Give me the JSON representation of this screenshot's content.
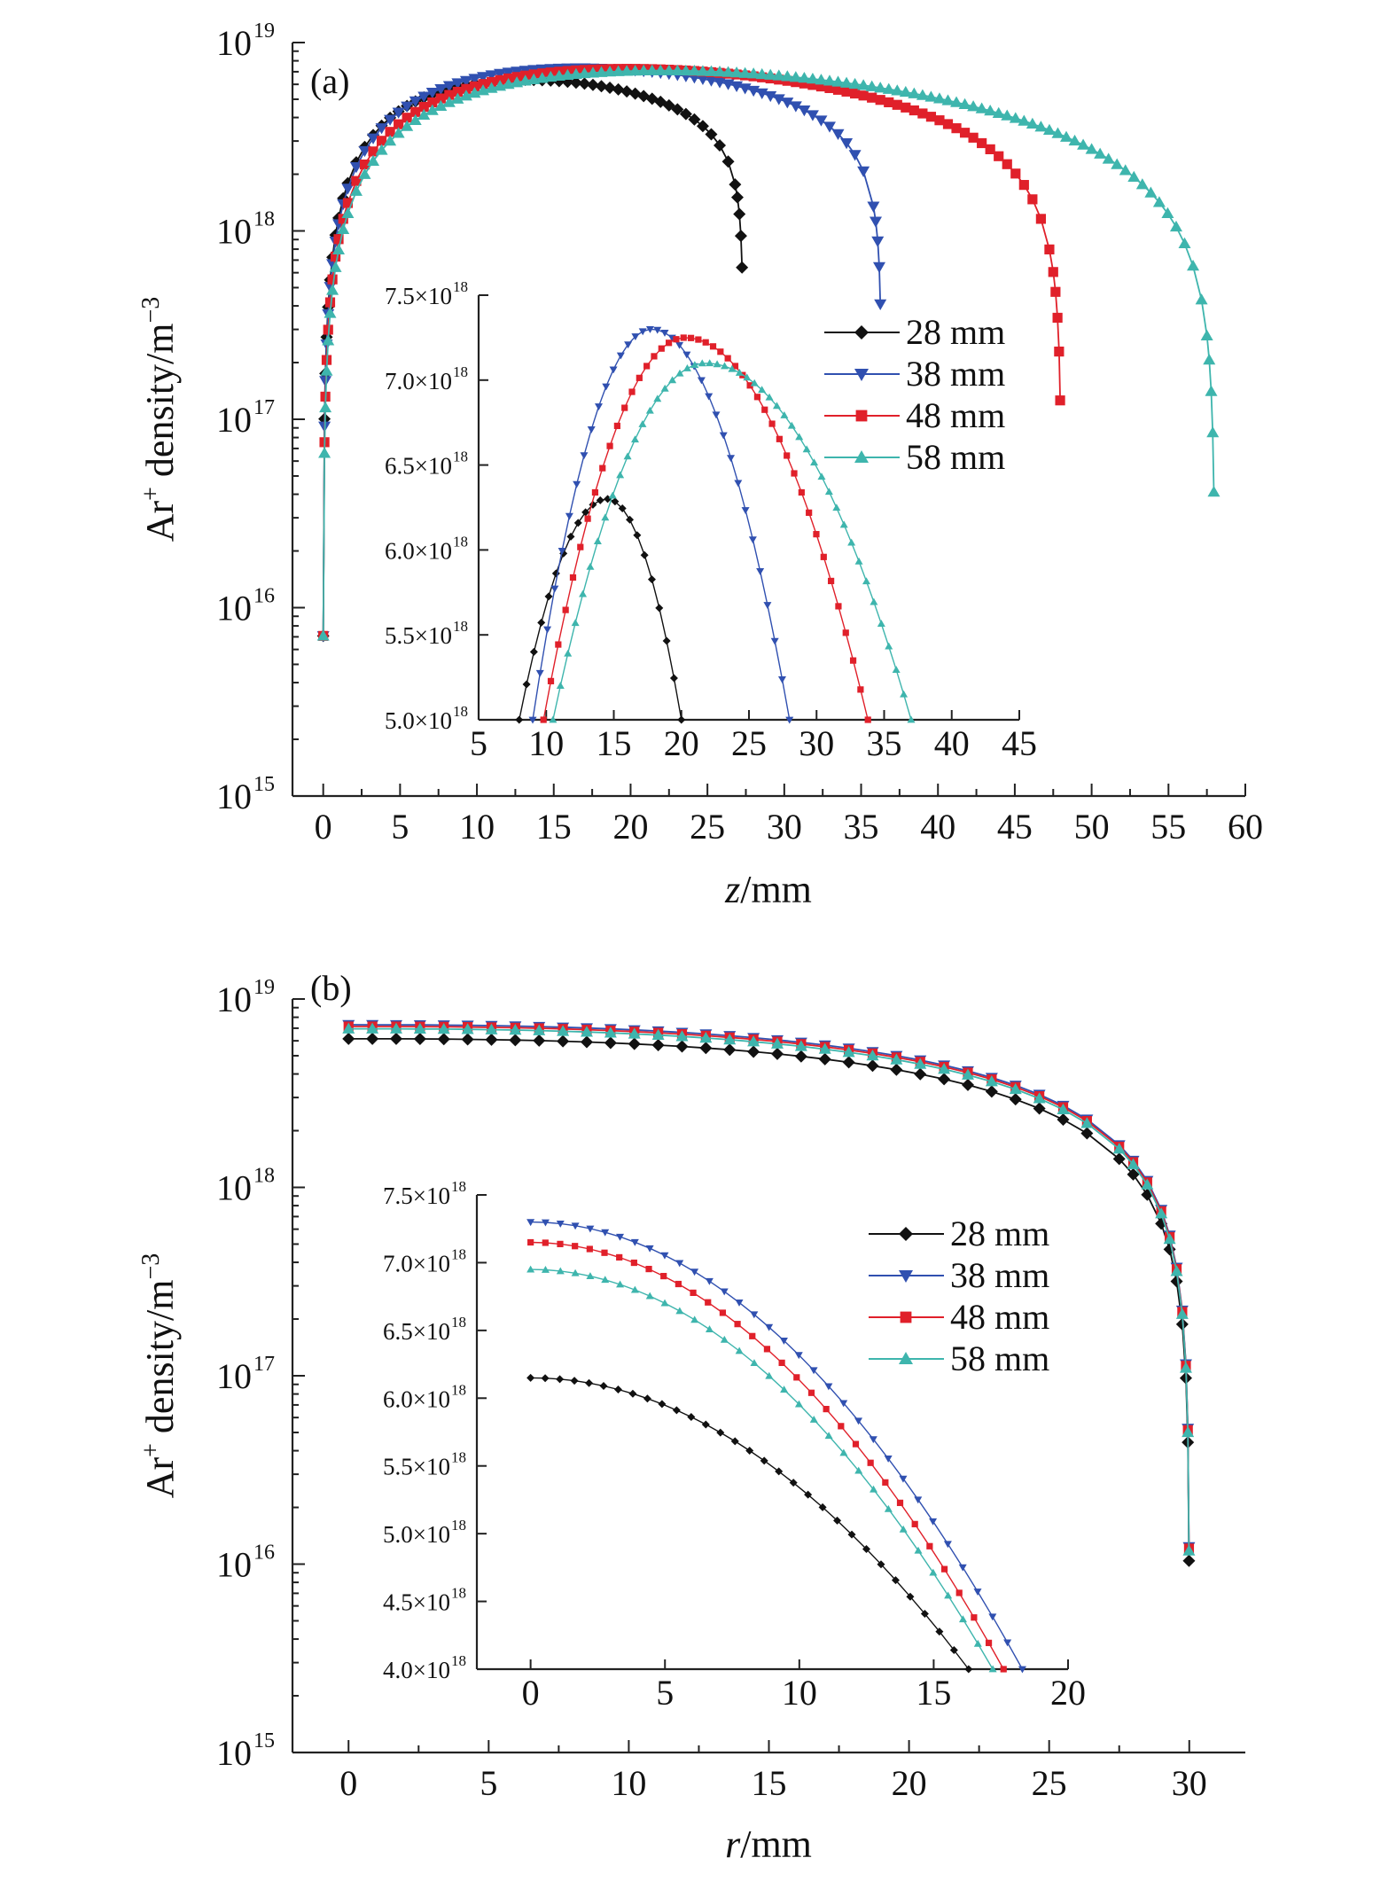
{
  "figure": {
    "width": 1575,
    "height": 2131
  },
  "chart_data": [
    {
      "id": "a",
      "type": "line",
      "panel_label": "(a)",
      "xlabel_italic": "z",
      "xlabel_rest": "/mm",
      "ylabel": "Ar",
      "ylabel_sup": "+",
      "ylabel_rest": " density/m",
      "ylabel_sup2": "−3",
      "xlim": [
        -2,
        60
      ],
      "xticks": [
        0,
        5,
        10,
        15,
        20,
        25,
        30,
        35,
        40,
        45,
        50,
        55,
        60
      ],
      "yscale": "log",
      "ylim_exp": [
        15,
        19
      ],
      "yticks_exp": [
        15,
        16,
        17,
        18,
        19
      ],
      "grid": false,
      "series": [
        {
          "name": "28 mm",
          "color": "#111111",
          "marker": "diamond",
          "L": 27.3,
          "peak_x": 14.5,
          "peak_y": 6.3e+18
        },
        {
          "name": "38 mm",
          "color": "#3050b0",
          "marker": "triangle-down",
          "L": 36.3,
          "peak_x": 17.8,
          "peak_y": 7.3e+18
        },
        {
          "name": "48 mm",
          "color": "#e0202a",
          "marker": "square",
          "L": 48.0,
          "peak_x": 20.3,
          "peak_y": 7.25e+18
        },
        {
          "name": "58 mm",
          "color": "#3eb5ad",
          "marker": "triangle-up",
          "L": 58.0,
          "peak_x": 21.8,
          "peak_y": 7.1e+18
        }
      ],
      "legend_position": "inside-right",
      "inset": {
        "xlim": [
          5,
          45
        ],
        "xticks": [
          5,
          10,
          15,
          20,
          25,
          30,
          35,
          40,
          45
        ],
        "ylim": [
          5e+18,
          7.5e+18
        ],
        "yticks": [
          {
            "value": 5e+18,
            "mant": "5.0×10",
            "exp": "18"
          },
          {
            "value": 5.5e+18,
            "mant": "5.5×10",
            "exp": "18"
          },
          {
            "value": 6e+18,
            "mant": "6.0×10",
            "exp": "18"
          },
          {
            "value": 6.5e+18,
            "mant": "6.5×10",
            "exp": "18"
          },
          {
            "value": 7e+18,
            "mant": "7.0×10",
            "exp": "18"
          },
          {
            "value": 7.5e+18,
            "mant": "7.5×10",
            "exp": "18"
          }
        ],
        "series": [
          {
            "name": "28 mm",
            "peak_x": 14.5,
            "peak_y": 6.3e+18,
            "x_start": 8.0,
            "x_end": 20.0
          },
          {
            "name": "38 mm",
            "peak_x": 17.8,
            "peak_y": 7.3e+18,
            "x_start": 9.0,
            "x_end": 28.0
          },
          {
            "name": "48 mm",
            "peak_x": 20.3,
            "peak_y": 7.25e+18,
            "x_start": 9.8,
            "x_end": 33.8
          },
          {
            "name": "58 mm",
            "peak_x": 21.8,
            "peak_y": 7.1e+18,
            "x_start": 10.5,
            "x_end": 37.0
          }
        ]
      }
    },
    {
      "id": "b",
      "type": "line",
      "panel_label": "(b)",
      "xlabel_italic": "r",
      "xlabel_rest": "/mm",
      "ylabel": "Ar",
      "ylabel_sup": "+",
      "ylabel_rest": " density/m",
      "ylabel_sup2": "−3",
      "xlim": [
        -2,
        32
      ],
      "xticks": [
        0,
        5,
        10,
        15,
        20,
        25,
        30
      ],
      "yscale": "log",
      "ylim_exp": [
        15,
        19
      ],
      "yticks_exp": [
        15,
        16,
        17,
        18,
        19
      ],
      "grid": false,
      "series": [
        {
          "name": "28 mm",
          "color": "#111111",
          "marker": "diamond",
          "center_y": 6.15e+18
        },
        {
          "name": "38 mm",
          "color": "#3050b0",
          "marker": "triangle-down",
          "center_y": 7.3e+18
        },
        {
          "name": "48 mm",
          "color": "#e0202a",
          "marker": "square",
          "center_y": 7.15e+18
        },
        {
          "name": "58 mm",
          "color": "#3eb5ad",
          "marker": "triangle-up",
          "center_y": 6.95e+18
        }
      ],
      "r_edge": 30,
      "legend_position": "inside-right",
      "inset": {
        "xlim": [
          -2,
          20
        ],
        "xticks": [
          0,
          5,
          10,
          15,
          20
        ],
        "ylim": [
          4e+18,
          7.5e+18
        ],
        "yticks": [
          {
            "value": 4e+18,
            "mant": "4.0×10",
            "exp": "18"
          },
          {
            "value": 4.5e+18,
            "mant": "4.5×10",
            "exp": "18"
          },
          {
            "value": 5e+18,
            "mant": "5.0×10",
            "exp": "18"
          },
          {
            "value": 5.5e+18,
            "mant": "5.5×10",
            "exp": "18"
          },
          {
            "value": 6e+18,
            "mant": "6.0×10",
            "exp": "18"
          },
          {
            "value": 6.5e+18,
            "mant": "6.5×10",
            "exp": "18"
          },
          {
            "value": 7e+18,
            "mant": "7.0×10",
            "exp": "18"
          },
          {
            "value": 7.5e+18,
            "mant": "7.5×10",
            "exp": "18"
          }
        ],
        "series": [
          {
            "name": "28 mm",
            "center_y": 6.15e+18,
            "x_end": 16.3
          },
          {
            "name": "38 mm",
            "center_y": 7.3e+18,
            "x_end": 18.3
          },
          {
            "name": "48 mm",
            "center_y": 7.15e+18,
            "x_end": 17.6
          },
          {
            "name": "58 mm",
            "center_y": 6.95e+18,
            "x_end": 17.2
          }
        ]
      }
    }
  ]
}
